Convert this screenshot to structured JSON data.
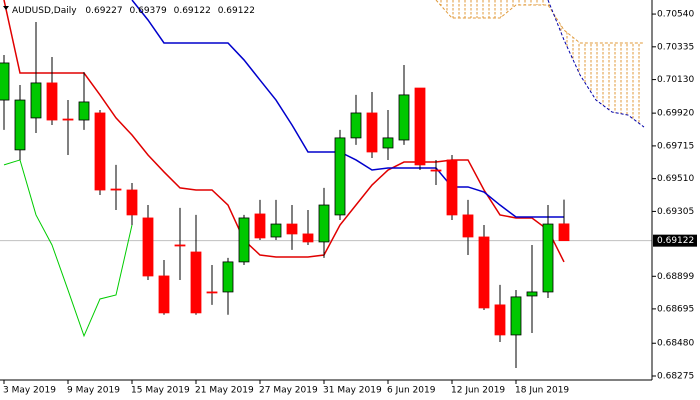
{
  "chart_data": {
    "type": "candlestick",
    "title": "AUDUSD,Daily",
    "categories": [
      "3 May 2019",
      null,
      null,
      null,
      "9 May 2019",
      null,
      null,
      null,
      "15 May 2019",
      null,
      null,
      null,
      "21 May 2019",
      null,
      null,
      null,
      "27 May 2019",
      null,
      null,
      null,
      "31 May 2019",
      null,
      null,
      null,
      "6 Jun 2019",
      null,
      null,
      null,
      "12 Jun 2019",
      null,
      null,
      null,
      "18 Jun 2019",
      null,
      null,
      null,
      null,
      null,
      null,
      null,
      null
    ],
    "open": [
      0.70002,
      0.6969,
      0.6989,
      0.70109,
      0.69883,
      0.69877,
      0.69921,
      0.69445,
      0.69439,
      0.69264,
      0.68901,
      0.69095,
      0.69051,
      0.68801,
      0.68801,
      0.68989,
      0.69289,
      0.69145,
      0.69226,
      0.69164,
      0.69114,
      0.69283,
      0.69765,
      0.69921,
      0.69702,
      0.69752,
      0.70077,
      0.69564,
      0.69627,
      0.69283,
      0.69145,
      0.6872,
      0.68532,
      0.68776,
      0.68801,
      0.69227,
      null,
      null,
      null,
      null,
      null
    ],
    "high": [
      0.70284,
      0.70096,
      0.7049,
      0.70271,
      0.70002,
      0.70177,
      0.6994,
      0.69596,
      0.69483,
      0.69345,
      0.69001,
      0.69327,
      0.69283,
      0.6897,
      0.69014,
      0.69283,
      0.69377,
      0.69377,
      0.69345,
      0.69314,
      0.69452,
      0.69815,
      0.70034,
      0.70052,
      0.6994,
      0.70221,
      0.70077,
      0.69627,
      0.69658,
      0.69377,
      0.6922,
      0.68845,
      0.68813,
      0.69095,
      0.69345,
      0.69379,
      null,
      null,
      null,
      null,
      null
    ],
    "low": [
      0.69815,
      0.69627,
      0.69796,
      0.69846,
      0.69658,
      0.69815,
      0.69408,
      0.69314,
      0.6922,
      0.68876,
      0.68658,
      0.68876,
      0.68658,
      0.6872,
      0.68658,
      0.6897,
      0.69126,
      0.69126,
      0.69064,
      0.69095,
      0.69014,
      0.69251,
      0.69721,
      0.69639,
      0.69627,
      0.69721,
      0.69564,
      0.6947,
      0.69251,
      0.69032,
      0.68688,
      0.68488,
      0.68325,
      0.68544,
      0.68763,
      0.69122,
      null,
      null,
      null,
      null,
      null
    ],
    "close": [
      0.70234,
      0.70002,
      0.70109,
      0.69877,
      0.69877,
      0.6999,
      0.69439,
      0.69439,
      0.69283,
      0.68901,
      0.6867,
      0.69089,
      0.6867,
      0.68795,
      0.68989,
      0.69264,
      0.69139,
      0.69226,
      0.69164,
      0.69114,
      0.69345,
      0.69765,
      0.69921,
      0.69677,
      0.69765,
      0.70034,
      0.69596,
      0.69558,
      0.69283,
      0.69145,
      0.68701,
      0.68532,
      0.6877,
      0.68801,
      0.69226,
      0.69122,
      null,
      null,
      null,
      null,
      null
    ],
    "up_color": "#00c800",
    "down_color": "#ff0000",
    "lines": [
      {
        "color": "#e00000",
        "values": [
          0.70628,
          0.70171,
          0.70171,
          0.70171,
          0.70171,
          0.70171,
          0.70034,
          0.6989,
          0.69783,
          0.69658,
          0.69552,
          0.69452,
          0.69439,
          0.69439,
          0.69345,
          0.69126,
          0.69032,
          0.6902,
          0.6902,
          0.6902,
          0.69032,
          0.6922,
          0.69345,
          0.6947,
          0.69564,
          0.69614,
          0.69614,
          0.69614,
          0.69627,
          0.69627,
          0.69439,
          0.69283,
          0.69264,
          0.69264,
          0.69189,
          0.68989,
          null,
          null,
          null,
          null,
          null
        ]
      },
      {
        "color": "#0000cc",
        "values": [
          null,
          null,
          null,
          null,
          null,
          null,
          null,
          null,
          0.70628,
          0.70503,
          0.70359,
          0.70359,
          0.70359,
          0.70359,
          0.70359,
          0.70253,
          0.70127,
          0.70002,
          0.69846,
          0.69677,
          0.69677,
          0.69677,
          0.69627,
          0.69564,
          0.69577,
          0.69577,
          0.69577,
          0.69577,
          0.69458,
          0.69458,
          0.69426,
          0.69345,
          0.6927,
          0.6927,
          0.6927,
          0.6927,
          null,
          null,
          null,
          null,
          null
        ]
      },
      {
        "color": "#00cc00",
        "values": [
          0.69596,
          0.69627,
          0.69283,
          0.69095,
          0.68813,
          0.68526,
          0.68757,
          0.68782,
          0.6922,
          null,
          null,
          null,
          null,
          null,
          null,
          null,
          null,
          null,
          null,
          null,
          null,
          null,
          null,
          null,
          null,
          null,
          null,
          null,
          null,
          null,
          null,
          null,
          null,
          null,
          null,
          null,
          null,
          null,
          null,
          null,
          null
        ]
      }
    ],
    "cloud": {
      "color": "#e09a3a",
      "span_a": [
        null,
        null,
        null,
        null,
        null,
        null,
        null,
        null,
        null,
        null,
        null,
        null,
        null,
        null,
        null,
        null,
        null,
        null,
        null,
        null,
        null,
        null,
        null,
        null,
        null,
        null,
        null,
        0.70628,
        0.70515,
        0.70515,
        0.70515,
        0.70515,
        0.70597,
        0.70597,
        0.70597,
        0.7044,
        0.70359,
        0.70359,
        0.70359,
        0.70359,
        0.70359
      ],
      "span_b": [
        null,
        null,
        null,
        null,
        null,
        null,
        null,
        null,
        null,
        null,
        null,
        null,
        null,
        null,
        null,
        null,
        null,
        null,
        null,
        null,
        null,
        null,
        null,
        null,
        null,
        null,
        null,
        null,
        null,
        null,
        null,
        null,
        null,
        null,
        0.70628,
        0.70378,
        0.70159,
        0.70002,
        0.69927,
        0.69908,
        0.69833
      ]
    },
    "ylim": [
      0.6825,
      0.70628
    ],
    "yticks": [
      {
        "value": 0.7054,
        "label": "0.70540"
      },
      {
        "value": 0.70335,
        "label": "0.70335"
      },
      {
        "value": 0.7013,
        "label": "0.70130"
      },
      {
        "value": 0.6992,
        "label": "0.69920"
      },
      {
        "value": 0.69715,
        "label": "0.69715"
      },
      {
        "value": 0.6951,
        "label": "0.69510"
      },
      {
        "value": 0.69305,
        "label": "0.69305"
      },
      {
        "value": 0.68899,
        "label": "0.68899"
      },
      {
        "value": 0.68695,
        "label": "0.68695"
      },
      {
        "value": 0.6848,
        "label": "0.68480"
      },
      {
        "value": 0.68275,
        "label": "0.68275"
      }
    ]
  }
}
